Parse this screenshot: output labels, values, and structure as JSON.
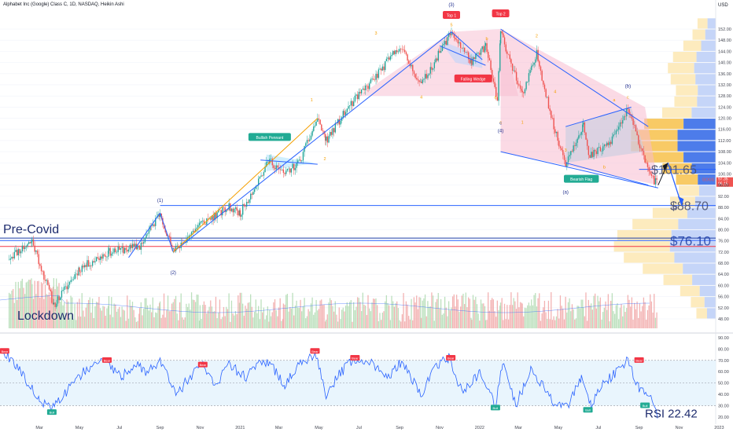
{
  "header": {
    "symbol_info": "Alphabet Inc (Google) Class C, 1D, NASDAQ, Heikin Ashi",
    "currency": "USD"
  },
  "chart_data": {
    "type": "candlestick",
    "x_ticks": [
      "Mar",
      "May",
      "Jul",
      "Sep",
      "Nov",
      "2021",
      "Mar",
      "May",
      "Jul",
      "Sep",
      "Nov",
      "2022",
      "Mar",
      "May",
      "Jul",
      "Sep",
      "Nov",
      "2023"
    ],
    "price_ticks": [
      48,
      52,
      56,
      60,
      64,
      68,
      72,
      76,
      80,
      84,
      88,
      92,
      96,
      100,
      104,
      108,
      112,
      116,
      120,
      124,
      128,
      132,
      136,
      140,
      144,
      148,
      152
    ],
    "rsi_ticks": [
      20,
      30,
      40,
      50,
      60,
      70,
      80,
      90
    ],
    "price_path": [
      [
        "2020-01-15",
        70
      ],
      [
        "2020-02-19",
        76
      ],
      [
        "2020-03-23",
        53
      ],
      [
        "2020-05-01",
        66
      ],
      [
        "2020-06-15",
        72
      ],
      [
        "2020-08-01",
        74
      ],
      [
        "2020-09-01",
        86
      ],
      [
        "2020-09-21",
        72
      ],
      [
        "2020-11-01",
        82
      ],
      [
        "2020-12-15",
        88
      ],
      [
        "2021-01-01",
        86
      ],
      [
        "2021-02-15",
        105
      ],
      [
        "2021-03-08",
        100
      ],
      [
        "2021-04-01",
        104
      ],
      [
        "2021-04-29",
        120
      ],
      [
        "2021-05-12",
        112
      ],
      [
        "2021-06-15",
        124
      ],
      [
        "2021-07-27",
        135
      ],
      [
        "2021-09-01",
        146
      ],
      [
        "2021-10-04",
        132
      ],
      [
        "2021-11-19",
        151
      ],
      [
        "2021-12-20",
        140
      ],
      [
        "2022-01-10",
        146
      ],
      [
        "2022-01-28",
        126
      ],
      [
        "2022-02-02",
        151
      ],
      [
        "2022-03-07",
        128
      ],
      [
        "2022-03-29",
        143
      ],
      [
        "2022-04-26",
        115
      ],
      [
        "2022-05-12",
        104
      ],
      [
        "2022-06-08",
        118
      ],
      [
        "2022-06-16",
        106
      ],
      [
        "2022-07-18",
        111
      ],
      [
        "2022-08-15",
        123
      ],
      [
        "2022-09-06",
        108
      ],
      [
        "2022-09-22",
        98
      ],
      [
        "2022-09-30",
        96
      ]
    ],
    "horizontal_levels": [
      {
        "label": "$101.65",
        "price": 101.65,
        "color": "#2962ff"
      },
      {
        "label": "$88.70",
        "price": 88.7,
        "color": "#2962ff"
      },
      {
        "label": "$76.10",
        "price": 76.1,
        "color": "#2962ff"
      },
      {
        "price": 74,
        "color": "#f23645"
      }
    ],
    "price_labels": {
      "symbol": "GOOG",
      "last": "97.35",
      "prev": "96.15"
    },
    "annotations": {
      "pre_covid": "Pre-Covid",
      "lockdown": "Lockdown",
      "bullish_pennant": "Bullish Pennant",
      "falling_wedge": "Falling Wedge",
      "bearish_flag": "Bearish Flag",
      "top1": "Top 1",
      "top2": "Top 2",
      "wave_3": "(3)",
      "wave_4": "(4)",
      "wave_1": "(1)",
      "wave_2": "(2)",
      "wave_a": "(a)",
      "wave_b": "(b)",
      "wave_c": "(c)",
      "sub_labels": [
        "1",
        "2",
        "3",
        "4",
        "5",
        "a",
        "b",
        "c"
      ]
    },
    "rsi": {
      "label": "RSI 22.42",
      "value": 22.42,
      "overbought": 70,
      "oversold": 30,
      "path": [
        [
          "2020-01-05",
          80
        ],
        [
          "2020-02-01",
          60
        ],
        [
          "2020-03-01",
          35
        ],
        [
          "2020-03-20",
          26
        ],
        [
          "2020-04-15",
          45
        ],
        [
          "2020-05-10",
          62
        ],
        [
          "2020-06-10",
          70
        ],
        [
          "2020-07-05",
          55
        ],
        [
          "2020-07-25",
          68
        ],
        [
          "2020-08-10",
          60
        ],
        [
          "2020-09-05",
          70
        ],
        [
          "2020-09-25",
          38
        ],
        [
          "2020-10-15",
          55
        ],
        [
          "2020-11-05",
          65
        ],
        [
          "2020-11-25",
          48
        ],
        [
          "2020-12-15",
          66
        ],
        [
          "2021-01-10",
          55
        ],
        [
          "2021-02-05",
          70
        ],
        [
          "2021-02-25",
          60
        ],
        [
          "2021-03-10",
          48
        ],
        [
          "2021-04-01",
          66
        ],
        [
          "2021-04-25",
          76
        ],
        [
          "2021-05-12",
          40
        ],
        [
          "2021-06-01",
          58
        ],
        [
          "2021-06-25",
          72
        ],
        [
          "2021-07-20",
          68
        ],
        [
          "2021-08-15",
          55
        ],
        [
          "2021-09-05",
          70
        ],
        [
          "2021-10-04",
          38
        ],
        [
          "2021-10-25",
          65
        ],
        [
          "2021-11-15",
          72
        ],
        [
          "2021-12-05",
          42
        ],
        [
          "2022-01-01",
          58
        ],
        [
          "2022-01-25",
          30
        ],
        [
          "2022-02-05",
          68
        ],
        [
          "2022-02-25",
          30
        ],
        [
          "2022-03-20",
          62
        ],
        [
          "2022-04-05",
          50
        ],
        [
          "2022-04-25",
          32
        ],
        [
          "2022-05-15",
          28
        ],
        [
          "2022-06-05",
          55
        ],
        [
          "2022-06-20",
          30
        ],
        [
          "2022-07-10",
          50
        ],
        [
          "2022-08-01",
          62
        ],
        [
          "2022-08-15",
          70
        ],
        [
          "2022-09-01",
          45
        ],
        [
          "2022-09-15",
          40
        ],
        [
          "2022-09-30",
          22
        ]
      ]
    },
    "signals": {
      "bull": "Bull",
      "bear": "Bear"
    }
  }
}
